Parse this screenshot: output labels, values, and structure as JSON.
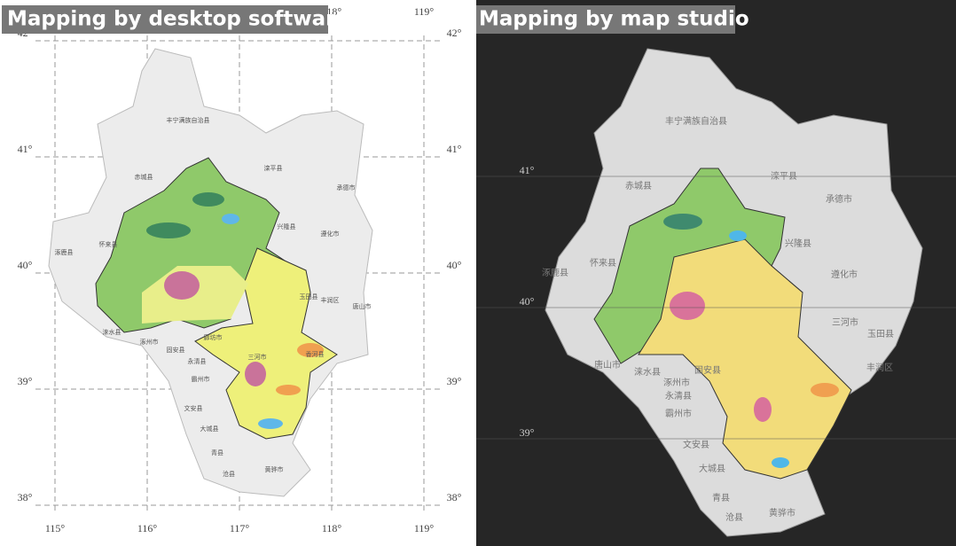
{
  "left_panel": {
    "title": "Mapping by desktop software",
    "xticks": [
      {
        "value": 115,
        "label": "115°"
      },
      {
        "value": 116,
        "label": "116°"
      },
      {
        "value": 117,
        "label": "117°"
      },
      {
        "value": 118,
        "label": "118°"
      },
      {
        "value": 119,
        "label": "119°"
      }
    ],
    "yticks": [
      {
        "value": 42,
        "label": "42°"
      },
      {
        "value": 41,
        "label": "41°"
      },
      {
        "value": 40,
        "label": "40°"
      },
      {
        "value": 39,
        "label": "39°"
      },
      {
        "value": 38,
        "label": "38°"
      }
    ],
    "places": [
      "丰宁满族自治县",
      "赤城县",
      "怀来县",
      "涿鹿县",
      "兴隆县",
      "遵化市",
      "承德市",
      "滦平县",
      "三河市",
      "香河县",
      "廊坊市",
      "固安县",
      "永清县",
      "霸州市",
      "文安县",
      "大城县",
      "青县",
      "沧县",
      "黄骅市",
      "涿州市",
      "涞水县",
      "玉田县",
      "丰润区",
      "唐山市"
    ]
  },
  "right_panel": {
    "title": "Mapping by map studio",
    "yticks": [
      {
        "value": 41,
        "label": "41°"
      },
      {
        "value": 40,
        "label": "40°"
      },
      {
        "value": 39,
        "label": "39°"
      }
    ],
    "places": [
      "丰宁满族自治县",
      "赤城县",
      "怀来县",
      "涿鹿县",
      "兴隆县",
      "遵化市",
      "承德市",
      "滦平县",
      "三河市",
      "玉田县",
      "丰润区",
      "唐山市",
      "涞水县",
      "涿州市",
      "固安县",
      "永清县",
      "霸州市",
      "文安县",
      "大城县",
      "青县",
      "沧县",
      "黄骅市"
    ]
  }
}
